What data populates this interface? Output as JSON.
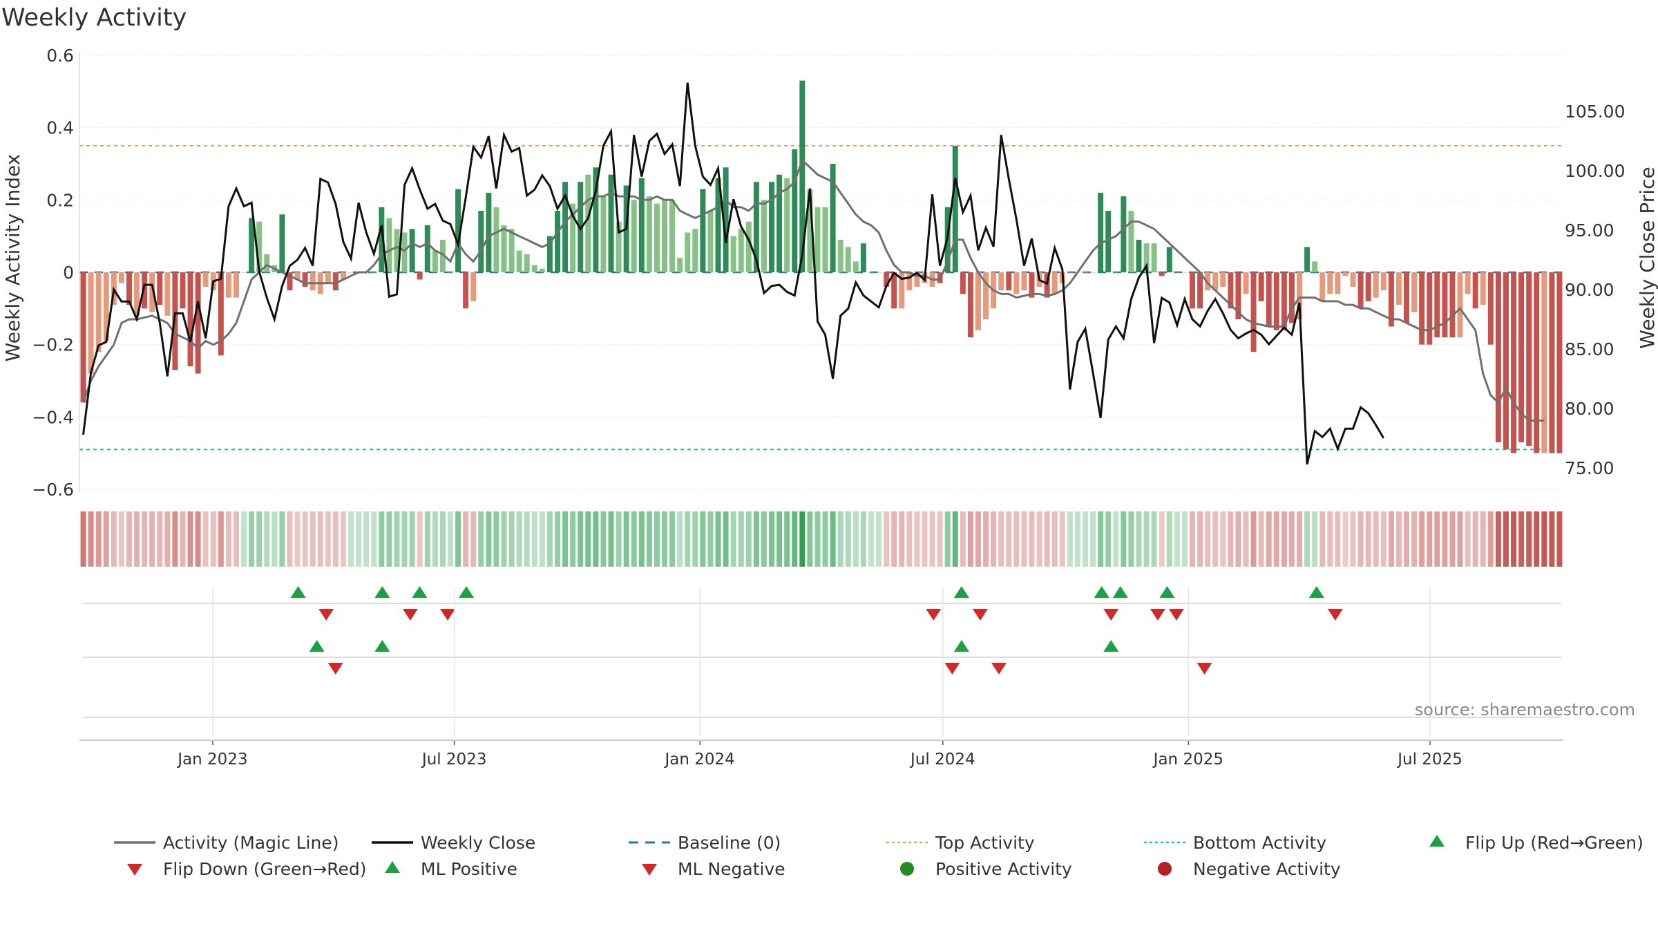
{
  "title": "Weekly Activity",
  "source": "source: sharemaestro.com",
  "chart_data": {
    "type": "bar",
    "title": "Weekly Activity",
    "ylabel": "Weekly Activity Index",
    "y2label": "Weekly Close Price",
    "ylim": [
      -0.6,
      0.6
    ],
    "y2lim": [
      73.2,
      109.7
    ],
    "yticks": [
      0.6,
      0.4,
      0.2,
      0,
      -0.2,
      -0.4,
      -0.6
    ],
    "yticklabels": [
      "0.6",
      "0.4",
      "0.2",
      "0",
      "−0.2",
      "−0.4",
      "−0.6"
    ],
    "y2ticks": [
      105,
      100,
      95,
      90,
      85,
      80,
      75
    ],
    "y2ticklabels": [
      "105.00",
      "100.00",
      "95.00",
      "90.00",
      "85.00",
      "80.00",
      "75.00"
    ],
    "start_date": "2022-09-26",
    "end_date": "2025-10-06",
    "xticks": [
      {
        "label": "Jan 2023",
        "date": "2023-01-01"
      },
      {
        "label": "Jul 2023",
        "date": "2023-07-01"
      },
      {
        "label": "Jan 2024",
        "date": "2024-01-01"
      },
      {
        "label": "Jul 2024",
        "date": "2024-07-01"
      },
      {
        "label": "Jan 2025",
        "date": "2025-01-01"
      },
      {
        "label": "Jul 2025",
        "date": "2025-07-01"
      }
    ],
    "top_activity": 0.35,
    "bottom_activity": -0.49,
    "activity": [
      -0.36,
      -0.28,
      -0.22,
      -0.19,
      -0.09,
      -0.03,
      -0.09,
      -0.12,
      -0.1,
      -0.11,
      -0.09,
      -0.12,
      -0.27,
      -0.1,
      -0.26,
      -0.28,
      -0.04,
      -0.05,
      -0.23,
      -0.07,
      -0.07,
      0.0,
      0.15,
      0.14,
      0.05,
      0.02,
      0.16,
      -0.05,
      -0.02,
      -0.04,
      -0.05,
      -0.06,
      -0.03,
      -0.05,
      -0.02,
      0.0,
      0.0,
      0.0,
      0.0,
      0.18,
      0.15,
      0.12,
      0.11,
      0.12,
      -0.02,
      0.13,
      0.06,
      0.09,
      0.0,
      0.23,
      -0.1,
      -0.08,
      0.17,
      0.22,
      0.18,
      0.13,
      0.12,
      0.06,
      0.05,
      0.02,
      0.01,
      0.1,
      0.17,
      0.25,
      0.19,
      0.25,
      0.27,
      0.29,
      0.21,
      0.27,
      0.14,
      0.24,
      0.2,
      0.26,
      0.21,
      0.19,
      0.2,
      0.2,
      0.04,
      0.11,
      0.12,
      0.23,
      0.17,
      0.26,
      0.29,
      0.1,
      0.12,
      0.14,
      0.25,
      0.2,
      0.25,
      0.27,
      0.26,
      0.34,
      0.53,
      0.23,
      0.18,
      0.18,
      0.3,
      0.09,
      0.07,
      0.03,
      0.08,
      0.0,
      0.0,
      -0.04,
      -0.1,
      -0.1,
      -0.05,
      -0.04,
      -0.03,
      -0.04,
      -0.03,
      0.18,
      0.35,
      -0.06,
      -0.18,
      -0.16,
      -0.13,
      -0.1,
      -0.05,
      -0.05,
      -0.06,
      -0.05,
      -0.07,
      -0.04,
      -0.07,
      -0.06,
      -0.03,
      0.0,
      0.0,
      0.0,
      0.0,
      0.22,
      0.17,
      0.0,
      0.21,
      0.17,
      0.09,
      0.08,
      0.08,
      -0.01,
      0.07,
      0.0,
      0.0,
      -0.1,
      -0.1,
      -0.05,
      -0.05,
      -0.04,
      -0.1,
      -0.13,
      -0.06,
      -0.22,
      -0.08,
      -0.15,
      -0.16,
      -0.16,
      -0.14,
      -0.13,
      0.07,
      0.03,
      -0.08,
      -0.06,
      -0.06,
      -0.01,
      -0.04,
      -0.1,
      -0.08,
      -0.07,
      -0.05,
      -0.15,
      -0.09,
      -0.14,
      -0.11,
      -0.2,
      -0.2,
      -0.18,
      -0.18,
      -0.18,
      -0.18,
      -0.06,
      -0.1,
      -0.09,
      -0.2,
      -0.47,
      -0.49,
      -0.5,
      -0.47,
      -0.48,
      -0.5,
      -0.5,
      -0.5,
      -0.5
    ],
    "activity_colors": [
      "#c4524d",
      "#e49a7b",
      "#e49a7b",
      "#e49a7b",
      "#e49a7b",
      "#e49a7b",
      "#c4524d",
      "#e49a7b",
      "#c4524d",
      "#e49a7b",
      "#c4524d",
      "#e49a7b",
      "#c4524d",
      "#c4524d",
      "#c4524d",
      "#c4524d",
      "#e49a7b",
      "#e49a7b",
      "#c4524d",
      "#e49a7b",
      "#e49a7b",
      "#e49a7b",
      "#2e8b57",
      "#86c186",
      "#86c186",
      "#86c186",
      "#2e8b57",
      "#c4524d",
      "#e49a7b",
      "#c4524d",
      "#e49a7b",
      "#e49a7b",
      "#e49a7b",
      "#c4524d",
      "#e49a7b",
      "#e49a7b",
      "#e49a7b",
      "#e49a7b",
      "#e49a7b",
      "#2e8b57",
      "#86c186",
      "#86c186",
      "#86c186",
      "#2e8b57",
      "#c4524d",
      "#2e8b57",
      "#86c186",
      "#86c186",
      "#86c186",
      "#2e8b57",
      "#c4524d",
      "#e49a7b",
      "#2e8b57",
      "#2e8b57",
      "#86c186",
      "#86c186",
      "#86c186",
      "#86c186",
      "#86c186",
      "#86c186",
      "#86c186",
      "#2e8b57",
      "#2e8b57",
      "#2e8b57",
      "#86c186",
      "#2e8b57",
      "#86c186",
      "#2e8b57",
      "#86c186",
      "#2e8b57",
      "#86c186",
      "#2e8b57",
      "#86c186",
      "#2e8b57",
      "#86c186",
      "#86c186",
      "#86c186",
      "#86c186",
      "#86c186",
      "#86c186",
      "#86c186",
      "#2e8b57",
      "#86c186",
      "#2e8b57",
      "#2e8b57",
      "#86c186",
      "#86c186",
      "#86c186",
      "#2e8b57",
      "#86c186",
      "#2e8b57",
      "#2e8b57",
      "#86c186",
      "#2e8b57",
      "#2e8b57",
      "#86c186",
      "#86c186",
      "#86c186",
      "#2e8b57",
      "#86c186",
      "#86c186",
      "#86c186",
      "#2e8b57",
      "#86c186",
      "#86c186",
      "#c4524d",
      "#c4524d",
      "#e49a7b",
      "#e49a7b",
      "#e49a7b",
      "#e49a7b",
      "#e49a7b",
      "#c4524d",
      "#2e8b57",
      "#2e8b57",
      "#c4524d",
      "#c4524d",
      "#e49a7b",
      "#e49a7b",
      "#e49a7b",
      "#e49a7b",
      "#c4524d",
      "#e49a7b",
      "#e49a7b",
      "#c4524d",
      "#e49a7b",
      "#c4524d",
      "#e49a7b",
      "#e49a7b",
      "#e49a7b",
      "#e49a7b",
      "#e49a7b",
      "#e49a7b",
      "#2e8b57",
      "#2e8b57",
      "#86c186",
      "#2e8b57",
      "#86c186",
      "#2e8b57",
      "#86c186",
      "#86c186",
      "#c4524d",
      "#2e8b57",
      "#e49a7b",
      "#e49a7b",
      "#c4524d",
      "#c4524d",
      "#e49a7b",
      "#e49a7b",
      "#e49a7b",
      "#c4524d",
      "#c4524d",
      "#e49a7b",
      "#c4524d",
      "#c4524d",
      "#c4524d",
      "#c4524d",
      "#c4524d",
      "#c4524d",
      "#e49a7b",
      "#2e8b57",
      "#86c186",
      "#e49a7b",
      "#e49a7b",
      "#e49a7b",
      "#e49a7b",
      "#e49a7b",
      "#c4524d",
      "#c4524d",
      "#e49a7b",
      "#e49a7b",
      "#c4524d",
      "#e49a7b",
      "#c4524d",
      "#e49a7b",
      "#c4524d",
      "#c4524d",
      "#c4524d",
      "#c4524d",
      "#c4524d",
      "#e49a7b",
      "#e49a7b",
      "#c4524d",
      "#e49a7b",
      "#c4524d",
      "#c4524d",
      "#c4524d",
      "#c4524d",
      "#c4524d",
      "#c4524d",
      "#c4524d",
      "#e49a7b",
      "#c4524d",
      "#c4524d",
      "#e49a7b"
    ],
    "magic_line": [
      -0.36,
      -0.3,
      -0.26,
      -0.23,
      -0.2,
      -0.14,
      -0.13,
      -0.13,
      -0.125,
      -0.12,
      -0.13,
      -0.14,
      -0.17,
      -0.18,
      -0.19,
      -0.21,
      -0.19,
      -0.2,
      -0.19,
      -0.17,
      -0.14,
      -0.08,
      -0.02,
      0.0,
      0.02,
      0.01,
      0.0,
      -0.01,
      -0.02,
      -0.03,
      -0.03,
      -0.03,
      -0.03,
      -0.03,
      -0.02,
      -0.01,
      0.0,
      0.0,
      0.02,
      0.05,
      0.06,
      0.07,
      0.06,
      0.08,
      0.07,
      0.08,
      0.06,
      0.05,
      0.03,
      0.08,
      0.05,
      0.03,
      0.06,
      0.1,
      0.11,
      0.12,
      0.11,
      0.1,
      0.09,
      0.08,
      0.07,
      0.08,
      0.11,
      0.14,
      0.16,
      0.18,
      0.2,
      0.21,
      0.21,
      0.22,
      0.21,
      0.21,
      0.21,
      0.2,
      0.2,
      0.21,
      0.2,
      0.2,
      0.17,
      0.16,
      0.15,
      0.16,
      0.17,
      0.18,
      0.2,
      0.18,
      0.18,
      0.17,
      0.19,
      0.19,
      0.2,
      0.22,
      0.23,
      0.25,
      0.31,
      0.29,
      0.27,
      0.26,
      0.25,
      0.22,
      0.19,
      0.16,
      0.14,
      0.13,
      0.11,
      0.06,
      0.02,
      0.0,
      0.0,
      -0.01,
      -0.01,
      -0.02,
      -0.02,
      0.03,
      0.09,
      0.09,
      0.04,
      0.0,
      -0.03,
      -0.05,
      -0.06,
      -0.06,
      -0.07,
      -0.065,
      -0.06,
      -0.06,
      -0.065,
      -0.06,
      -0.05,
      -0.03,
      0.0,
      0.03,
      0.06,
      0.08,
      0.09,
      0.1,
      0.12,
      0.14,
      0.14,
      0.13,
      0.12,
      0.1,
      0.08,
      0.06,
      0.04,
      0.02,
      0.0,
      -0.03,
      -0.05,
      -0.07,
      -0.09,
      -0.11,
      -0.13,
      -0.14,
      -0.145,
      -0.15,
      -0.15,
      -0.15,
      -0.1,
      -0.07,
      -0.07,
      -0.07,
      -0.08,
      -0.08,
      -0.08,
      -0.09,
      -0.09,
      -0.1,
      -0.1,
      -0.11,
      -0.12,
      -0.13,
      -0.13,
      -0.14,
      -0.15,
      -0.16,
      -0.16,
      -0.15,
      -0.14,
      -0.12,
      -0.1,
      -0.13,
      -0.16,
      -0.28,
      -0.34,
      -0.36,
      -0.32,
      -0.36,
      -0.39,
      -0.41,
      -0.41,
      -0.41
    ],
    "weekly_close": [
      77.8,
      83.0,
      85.3,
      85.6,
      90.0,
      89.0,
      89.0,
      87.5,
      90.4,
      90.4,
      87.2,
      82.7,
      88.0,
      88.0,
      85.6,
      89.0,
      85.9,
      90.7,
      90.9,
      97.0,
      98.5,
      97.0,
      97.3,
      91.5,
      89.3,
      87.5,
      90.3,
      92.0,
      92.5,
      93.5,
      92.0,
      99.3,
      99.0,
      97.2,
      94.0,
      92.6,
      97.3,
      94.8,
      93.0,
      95.4,
      89.4,
      89.6,
      98.8,
      100.2,
      98.4,
      96.8,
      97.2,
      95.8,
      95.5,
      93.8,
      97.7,
      102.0,
      101.1,
      102.9,
      98.5,
      103.0,
      101.6,
      101.9,
      97.9,
      98.4,
      99.6,
      98.7,
      96.8,
      97.9,
      96.2,
      95.1,
      96.0,
      98.3,
      102.1,
      103.3,
      94.8,
      95.1,
      103.0,
      99.5,
      102.5,
      103.1,
      101.4,
      102.2,
      98.7,
      107.4,
      102.1,
      99.5,
      98.8,
      100.2,
      93.9,
      97.6,
      95.3,
      94.2,
      92.5,
      89.7,
      90.3,
      90.4,
      89.8,
      89.5,
      92.9,
      98.5,
      87.3,
      86.2,
      82.5,
      87.8,
      88.4,
      90.6,
      89.5,
      89.0,
      88.5,
      90.3,
      91.4,
      90.9,
      91.0,
      91.4,
      90.8,
      98.0,
      92.0,
      94.4,
      99.4,
      96.5,
      97.9,
      93.3,
      95.2,
      93.6,
      103.0,
      99.3,
      95.9,
      92.0,
      94.3,
      90.8,
      90.5,
      93.5,
      91.7,
      81.6,
      85.6,
      86.7,
      83.0,
      79.2,
      85.8,
      86.9,
      85.9,
      89.2,
      91.0,
      92.0,
      85.5,
      89.3,
      88.9,
      87.0,
      89.2,
      87.5,
      86.9,
      88.2,
      89.2,
      88.0,
      86.6,
      85.9,
      86.3,
      86.6,
      86.2,
      85.4,
      86.1,
      86.8,
      86.2,
      88.9,
      75.3,
      78.1,
      77.6,
      78.3,
      76.6,
      78.3,
      78.3,
      80.1,
      79.6,
      78.6,
      77.5
    ],
    "flip_rows": [
      {
        "row": "flip",
        "up_dates": [
          "2023-03-06",
          "2023-05-08",
          "2023-06-05",
          "2023-07-10",
          "2024-07-15",
          "2024-10-28",
          "2024-11-11",
          "2024-12-16",
          "2025-04-07"
        ],
        "down_dates": [
          "2023-03-27",
          "2023-05-29",
          "2023-06-26",
          "2024-06-24",
          "2024-07-29",
          "2024-11-04",
          "2024-12-09",
          "2024-12-23",
          "2025-04-21"
        ]
      },
      {
        "row": "ml",
        "up_dates": [
          "2023-03-20",
          "2023-05-08",
          "2024-07-15",
          "2024-11-04"
        ],
        "down_dates": [
          "2023-04-03",
          "2024-07-08",
          "2024-08-12",
          "2025-01-13"
        ]
      }
    ],
    "legend": [
      {
        "label": "Activity (Magic Line)",
        "kind": "line",
        "color": "#707070"
      },
      {
        "label": "Weekly Close",
        "kind": "line",
        "color": "#111111"
      },
      {
        "label": "Baseline (0)",
        "kind": "dash",
        "color": "#1f77b4"
      },
      {
        "label": "Top Activity",
        "kind": "dot",
        "color": "#f0a060"
      },
      {
        "label": "Bottom Activity",
        "kind": "dot",
        "color": "#17c0c0"
      },
      {
        "label": "Flip Up (Red→Green)",
        "kind": "tri-up",
        "color": "#2ca02c"
      },
      {
        "label": "Flip Down (Green→Red)",
        "kind": "tri-down",
        "color": "#d62728"
      },
      {
        "label": "ML Positive",
        "kind": "tri-up",
        "color": "#2ca02c"
      },
      {
        "label": "ML Negative",
        "kind": "tri-down",
        "color": "#d62728"
      },
      {
        "label": "Positive Activity",
        "kind": "circle",
        "color": "#228b22"
      },
      {
        "label": "Negative Activity",
        "kind": "circle",
        "color": "#b22222"
      }
    ]
  }
}
